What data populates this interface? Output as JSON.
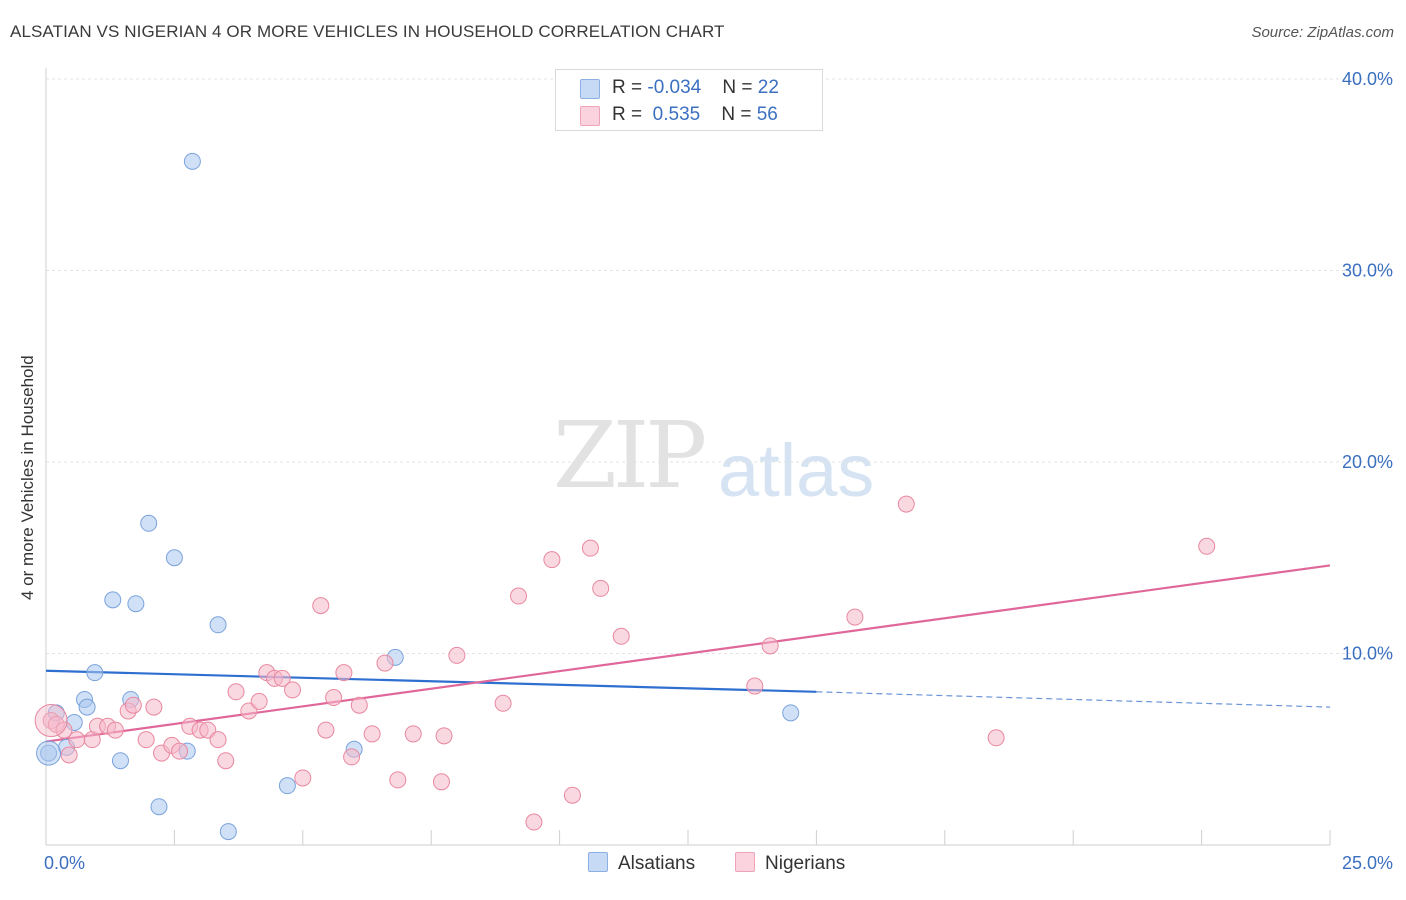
{
  "title": "ALSATIAN VS NIGERIAN 4 OR MORE VEHICLES IN HOUSEHOLD CORRELATION CHART",
  "source": "Source: ZipAtlas.com",
  "watermark": {
    "zip": "ZIP",
    "atlas": "atlas"
  },
  "legend": {
    "rows": [
      {
        "r_label": "R = ",
        "r_value": "-0.034",
        "n_label": "N = ",
        "n_value": "22",
        "color": "#a9c6ee"
      },
      {
        "r_label": "R = ",
        "r_value": " 0.535",
        "n_label": "N = ",
        "n_value": "56",
        "color": "#f5b8ca"
      }
    ]
  },
  "bottom_legend": [
    {
      "label": "Alsatians",
      "color": "#a9c6ee"
    },
    {
      "label": "Nigerians",
      "color": "#f5b8ca"
    }
  ],
  "chart_data": {
    "type": "scatter",
    "title": "ALSATIAN VS NIGERIAN 4 OR MORE VEHICLES IN HOUSEHOLD CORRELATION CHART",
    "xlabel": "",
    "ylabel": "4 or more Vehicles in Household",
    "xlim": [
      0,
      25
    ],
    "ylim": [
      0,
      40
    ],
    "x_tick_labels": [
      "0.0%",
      "25.0%"
    ],
    "y_ticks": [
      10,
      20,
      30,
      40
    ],
    "y_tick_labels": [
      "10.0%",
      "20.0%",
      "30.0%",
      "40.0%"
    ],
    "grid": true,
    "legend_position": "top-center",
    "series": [
      {
        "name": "Alsatians",
        "color": "#a9c6ee",
        "stroke": "#7aa3dc",
        "points": [
          [
            0.05,
            4.8
          ],
          [
            0.2,
            6.9
          ],
          [
            0.4,
            5.1
          ],
          [
            0.55,
            6.4
          ],
          [
            0.75,
            7.6
          ],
          [
            0.8,
            7.2
          ],
          [
            0.95,
            9.0
          ],
          [
            1.3,
            12.8
          ],
          [
            1.45,
            4.4
          ],
          [
            1.65,
            7.6
          ],
          [
            1.75,
            12.6
          ],
          [
            2.0,
            16.8
          ],
          [
            2.2,
            2.0
          ],
          [
            2.5,
            15.0
          ],
          [
            2.75,
            4.9
          ],
          [
            2.85,
            35.7
          ],
          [
            3.35,
            11.5
          ],
          [
            3.55,
            0.7
          ],
          [
            4.7,
            3.1
          ],
          [
            6.0,
            5.0
          ],
          [
            6.8,
            9.8
          ],
          [
            14.5,
            6.9
          ]
        ],
        "trend": {
          "x": [
            0,
            15.0
          ],
          "y": [
            9.1,
            8.0
          ],
          "dashed_to_x": 25,
          "dashed_to_y": 7.2
        }
      },
      {
        "name": "Nigerians",
        "color": "#f5b8ca",
        "stroke": "#e8889f",
        "points": [
          [
            0.1,
            6.5
          ],
          [
            0.2,
            6.3
          ],
          [
            0.35,
            6.0
          ],
          [
            0.45,
            4.7
          ],
          [
            0.6,
            5.5
          ],
          [
            0.9,
            5.5
          ],
          [
            1.0,
            6.2
          ],
          [
            1.2,
            6.2
          ],
          [
            1.35,
            6.0
          ],
          [
            1.6,
            7.0
          ],
          [
            1.7,
            7.3
          ],
          [
            1.95,
            5.5
          ],
          [
            2.1,
            7.2
          ],
          [
            2.25,
            4.8
          ],
          [
            2.45,
            5.2
          ],
          [
            2.6,
            4.9
          ],
          [
            2.8,
            6.2
          ],
          [
            3.0,
            6.0
          ],
          [
            3.15,
            6.0
          ],
          [
            3.35,
            5.5
          ],
          [
            3.5,
            4.4
          ],
          [
            3.7,
            8.0
          ],
          [
            3.95,
            7.0
          ],
          [
            4.15,
            7.5
          ],
          [
            4.3,
            9.0
          ],
          [
            4.45,
            8.7
          ],
          [
            4.6,
            8.7
          ],
          [
            4.8,
            8.1
          ],
          [
            5.0,
            3.5
          ],
          [
            5.35,
            12.5
          ],
          [
            5.45,
            6.0
          ],
          [
            5.6,
            7.7
          ],
          [
            5.8,
            9.0
          ],
          [
            5.95,
            4.6
          ],
          [
            6.1,
            7.3
          ],
          [
            6.35,
            5.8
          ],
          [
            6.6,
            9.5
          ],
          [
            6.85,
            3.4
          ],
          [
            7.15,
            5.8
          ],
          [
            7.7,
            3.3
          ],
          [
            7.75,
            5.7
          ],
          [
            8.0,
            9.9
          ],
          [
            8.9,
            7.4
          ],
          [
            9.2,
            13.0
          ],
          [
            9.5,
            1.2
          ],
          [
            9.85,
            14.9
          ],
          [
            10.25,
            2.6
          ],
          [
            10.6,
            15.5
          ],
          [
            10.8,
            13.4
          ],
          [
            11.2,
            10.9
          ],
          [
            13.8,
            8.3
          ],
          [
            14.1,
            10.4
          ],
          [
            15.75,
            11.9
          ],
          [
            16.75,
            17.8
          ],
          [
            18.5,
            5.6
          ],
          [
            22.6,
            15.6
          ]
        ],
        "trend": {
          "x": [
            0,
            25
          ],
          "y": [
            5.4,
            14.6
          ]
        }
      }
    ]
  }
}
